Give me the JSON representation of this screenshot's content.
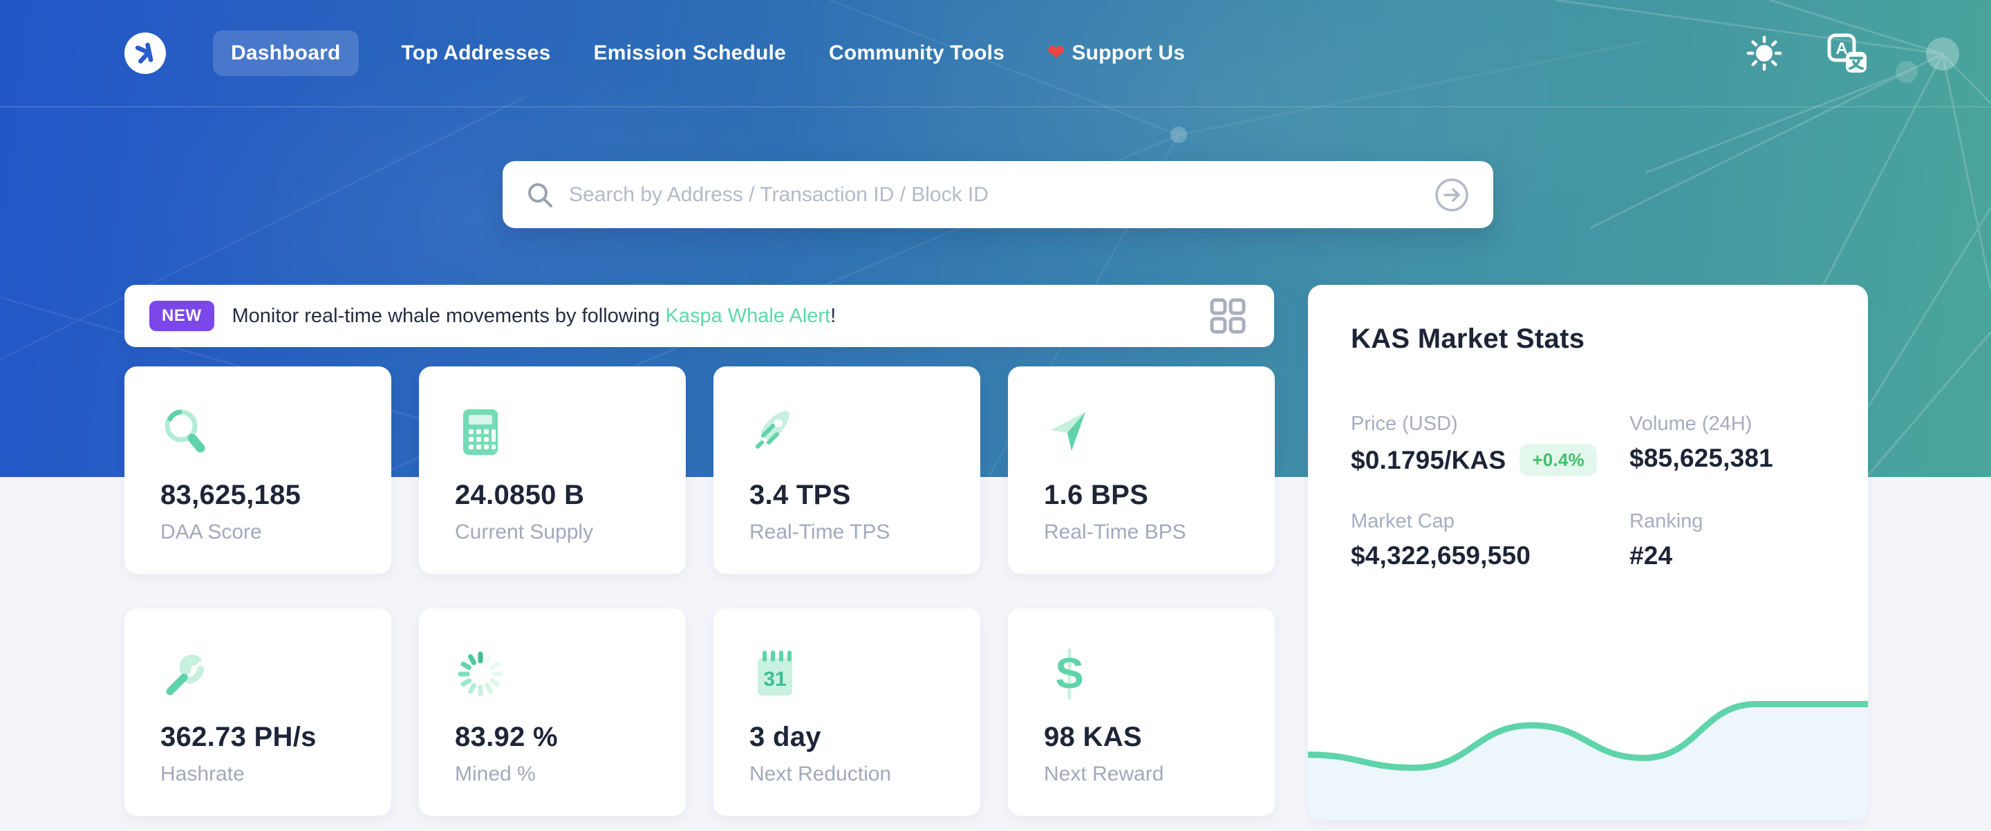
{
  "nav": {
    "items": [
      {
        "label": "Dashboard",
        "active": true
      },
      {
        "label": "Top Addresses",
        "active": false
      },
      {
        "label": "Emission Schedule",
        "active": false
      },
      {
        "label": "Community Tools",
        "active": false
      },
      {
        "label": "Support Us",
        "active": false,
        "heart": "❤"
      }
    ],
    "right_icons": [
      "sun-icon",
      "translate-icon"
    ],
    "logo_icon": "kaspa-logo"
  },
  "search": {
    "placeholder": "Search by Address / Transaction ID / Block ID",
    "icons": [
      "magnifier-icon",
      "arrow-right-circle-icon"
    ]
  },
  "banner": {
    "badge": "NEW",
    "text_before": "Monitor real-time whale movements by following ",
    "link": "Kaspa Whale Alert",
    "text_after": "!",
    "right_icon": "grid-icon"
  },
  "stats_cards": [
    {
      "icon": "magnifier-stat-icon",
      "value": "83,625,185",
      "label": "DAA Score"
    },
    {
      "icon": "calculator-icon",
      "value": "24.0850 B",
      "label": "Current Supply"
    },
    {
      "icon": "rocket-icon",
      "value": "3.4 TPS",
      "label": "Real-Time TPS"
    },
    {
      "icon": "paper-plane-icon",
      "value": "1.6 BPS",
      "label": "Real-Time BPS"
    },
    {
      "icon": "wrench-icon",
      "value": "362.73 PH/s",
      "label": "Hashrate"
    },
    {
      "icon": "spinner-icon",
      "value": "83.92 %",
      "label": "Mined %"
    },
    {
      "icon": "calendar-icon",
      "value": "3 day",
      "label": "Next Reduction"
    },
    {
      "icon": "dollar-icon",
      "value": "98 KAS",
      "label": "Next Reward"
    }
  ],
  "market": {
    "title": "KAS Market Stats",
    "stats": [
      {
        "label": "Price (USD)",
        "value": "$0.1795/KAS",
        "badge": "+0.4%"
      },
      {
        "label": "Volume (24H)",
        "value": "$85,625,381"
      },
      {
        "label": "Market Cap",
        "value": "$4,322,659,550"
      },
      {
        "label": "Ranking",
        "value": "#24"
      }
    ]
  },
  "chart_data": {
    "type": "area",
    "title": "KAS price sparkline",
    "points": [
      {
        "x": 0.0,
        "y": 0.4
      },
      {
        "x": 0.19,
        "y": 0.32
      },
      {
        "x": 0.4,
        "y": 0.58
      },
      {
        "x": 0.6,
        "y": 0.38
      },
      {
        "x": 0.8,
        "y": 0.71
      },
      {
        "x": 1.0,
        "y": 0.71
      }
    ],
    "x_axis": "none",
    "y_axis": "none",
    "grid": false,
    "legend": false,
    "line_color": "#5fd3a9",
    "fill_color": "#edf6fb"
  },
  "colors": {
    "gradient_left": "#2356c8",
    "gradient_right": "#4ba59c",
    "accent_teal": "#5fd3a9",
    "badge_purple": "#7b47e8",
    "link_green": "#5fd8a8",
    "pct_green": "#3fc06b",
    "value_dark": "#1e2538",
    "label_gray": "#a2a9bc",
    "page_bg": "#f3f5f9"
  }
}
